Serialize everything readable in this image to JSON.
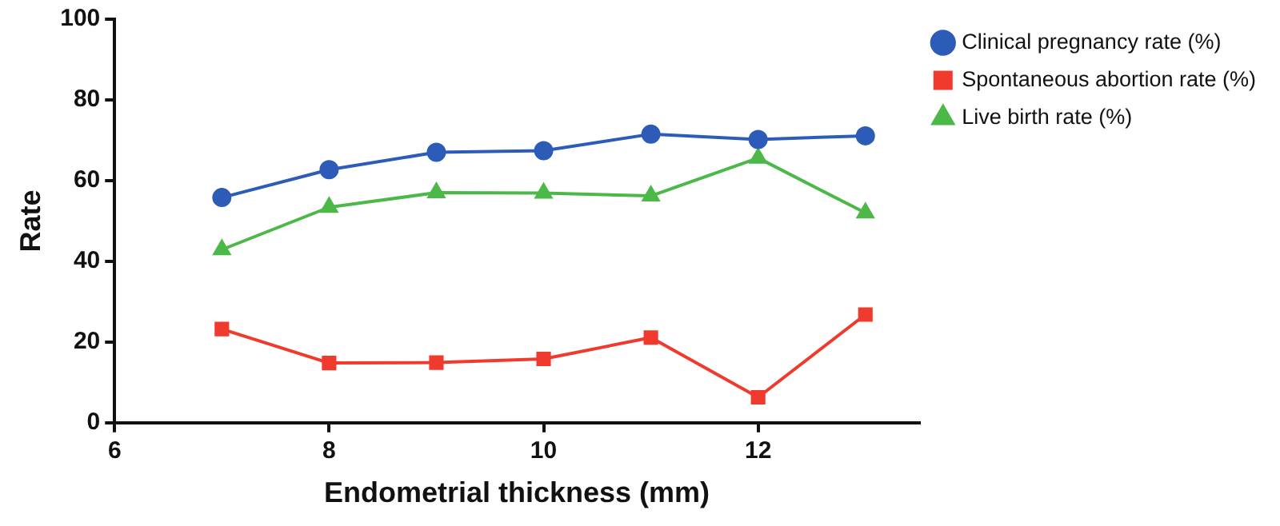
{
  "chart_data": {
    "type": "line",
    "xlabel": "Endometrial thickness (mm)",
    "ylabel": "Rate",
    "x": [
      7,
      8,
      9,
      10,
      11,
      12,
      13
    ],
    "series": [
      {
        "name": "Clinical pregnancy rate (%)",
        "color": "#2d5cb8",
        "marker": "circle",
        "values": [
          55.8,
          62.7,
          67,
          67.4,
          71.5,
          70.2,
          71.1
        ]
      },
      {
        "name": "Spontaneous abortion rate (%)",
        "color": "#f03a2e",
        "marker": "square",
        "values": [
          23.2,
          14.8,
          14.9,
          15.8,
          21.1,
          6.3,
          26.8
        ]
      },
      {
        "name": "Live birth rate (%)",
        "color": "#4cb848",
        "marker": "triangle",
        "values": [
          42.9,
          53.4,
          57,
          56.9,
          56.2,
          65.6,
          52
        ]
      }
    ],
    "xlim": [
      6,
      13.5
    ],
    "xticks": [
      6,
      8,
      10,
      12
    ],
    "ylim": [
      0,
      100
    ],
    "yticks": [
      0,
      20,
      40,
      60,
      80,
      100
    ],
    "grid": false,
    "legend": "top right"
  }
}
